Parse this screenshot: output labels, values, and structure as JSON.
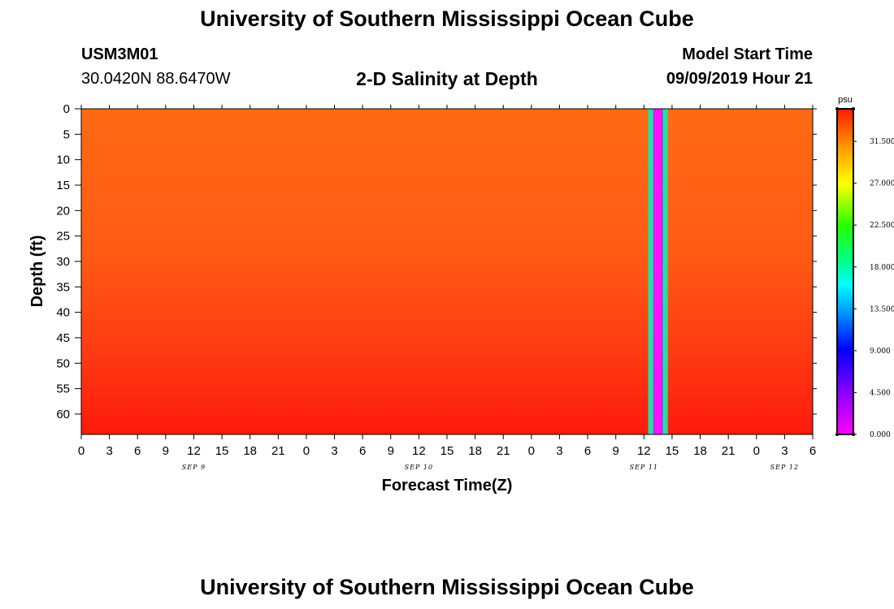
{
  "header": {
    "title": "University of Southern Mississippi Ocean Cube",
    "station_id": "USM3M01",
    "coords": "30.0420N 88.6470W",
    "plot_title": "2-D Salinity at Depth",
    "start_label": "Model Start Time",
    "start_value": "09/09/2019 Hour 21"
  },
  "footer": {
    "title": "University of Southern Mississippi Ocean Cube"
  },
  "chart_data": {
    "type": "heatmap",
    "title": "2-D Salinity at Depth",
    "xlabel": "Forecast Time(Z)",
    "ylabel": "Depth (ft)",
    "colorbar_unit": "psu",
    "y_ticks": [
      "0",
      "5",
      "10",
      "15",
      "20",
      "25",
      "30",
      "35",
      "40",
      "45",
      "50",
      "55",
      "60"
    ],
    "x_ticks": [
      "0",
      "3",
      "6",
      "9",
      "12",
      "15",
      "18",
      "21",
      "0",
      "3",
      "6",
      "9",
      "12",
      "15",
      "18",
      "21",
      "0",
      "3",
      "6",
      "9",
      "12",
      "15",
      "18",
      "21",
      "0",
      "3",
      "6"
    ],
    "date_labels": [
      {
        "label": "SEP 9",
        "hour_index": 4
      },
      {
        "label": "SEP 10",
        "hour_index": 12
      },
      {
        "label": "SEP 11",
        "hour_index": 20
      },
      {
        "label": "SEP 12",
        "hour_index": 25
      }
    ],
    "colorbar_ticks": [
      "0.000",
      "4.500",
      "9.000",
      "13.500",
      "18.000",
      "22.500",
      "27.000",
      "31.500"
    ],
    "colorbar_range": [
      0,
      35
    ],
    "ylim": [
      0,
      64
    ],
    "field": {
      "surface_salinity_psu": 31.5,
      "bottom_salinity_psu": 35,
      "missing_data_band": {
        "from_hour_index": 20.15,
        "to_hour_index": 20.85
      }
    },
    "colors": {
      "surface": "#ff6a14",
      "mid": "#ff4a14",
      "bottom": "#ff1a0c",
      "band_outer": "#22e0a0",
      "band_inner": "#ff10ff"
    }
  }
}
